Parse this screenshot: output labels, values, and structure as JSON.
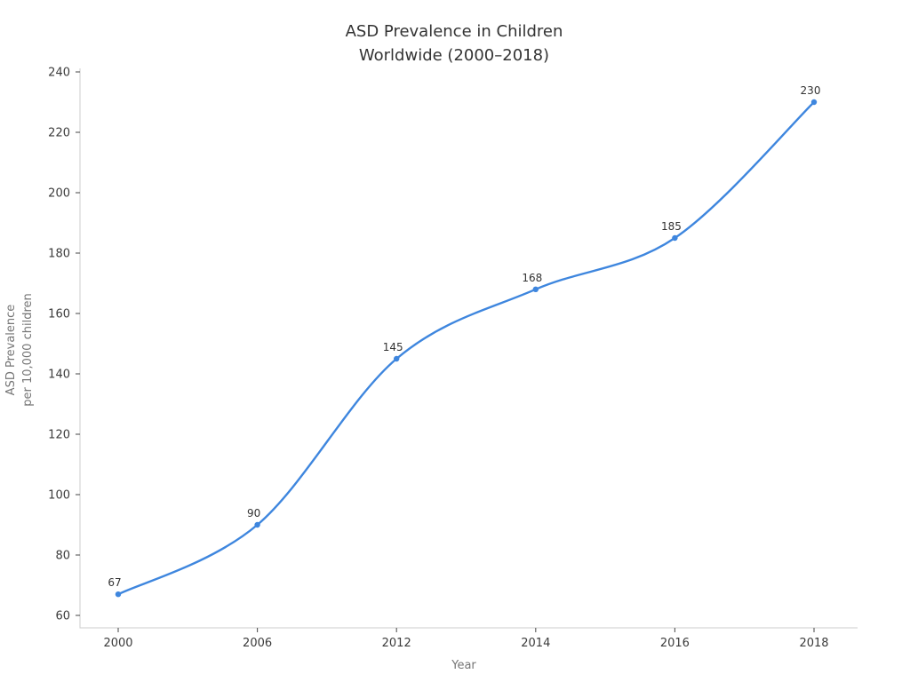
{
  "chart_data": {
    "type": "line",
    "title_lines": [
      "ASD Prevalence in Children",
      "Worldwide (2000–2018)"
    ],
    "xlabel": "Year",
    "ylabel_lines": [
      "ASD Prevalence",
      "per 10,000 children"
    ],
    "categories": [
      "2000",
      "2006",
      "2012",
      "2014",
      "2016",
      "2018"
    ],
    "series": [
      {
        "name": "ASD prevalence per 10,000 children",
        "values": [
          67,
          90,
          145,
          168,
          185,
          230
        ]
      }
    ],
    "point_labels": [
      "67",
      "90",
      "145",
      "168",
      "185",
      "230"
    ],
    "yticks": [
      60,
      80,
      100,
      120,
      140,
      160,
      180,
      200,
      220,
      240
    ],
    "ylim": [
      56,
      242
    ],
    "grid": false,
    "legend_position": "none",
    "line_style": "smooth-spline",
    "marker": "circle",
    "spines": [
      "left",
      "bottom"
    ],
    "colors": {
      "line": "#3e86de",
      "marker": "#3e86de",
      "spine": "#cccccc",
      "tick_mark": "#555555",
      "tick_label": "#3b3b3b",
      "title": "#333333",
      "axis_label": "#757575",
      "point_label": "#333333",
      "background": "#ffffff"
    }
  }
}
